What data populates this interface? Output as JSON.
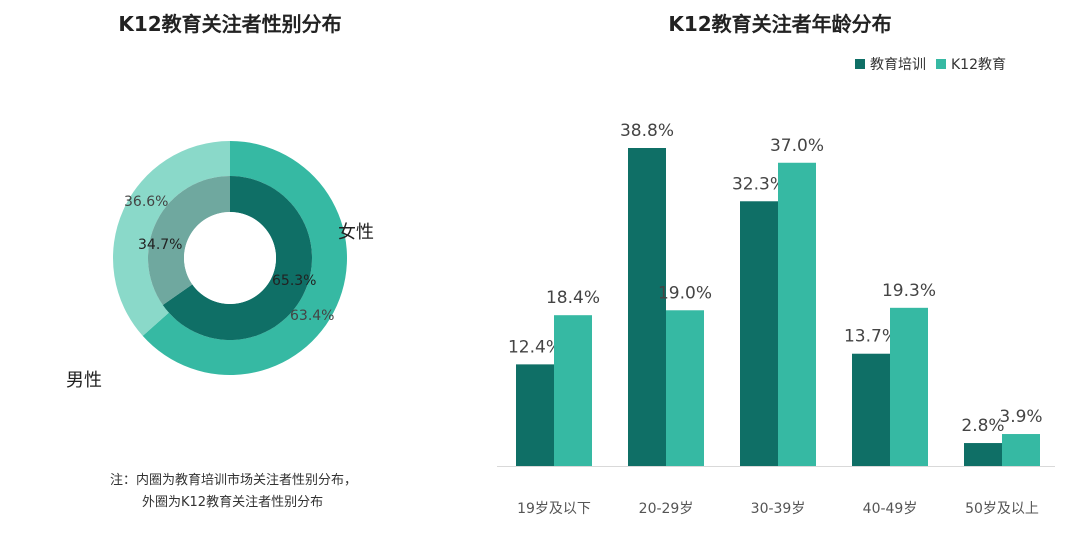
{
  "donut": {
    "title": "K12教育关注者性别分布",
    "note_line1": "注：内圈为教育培训市场关注者性别分布，",
    "note_line2": "外圈为K12教育关注者性别分布",
    "female_label": "女性",
    "male_label": "男性"
  },
  "bar": {
    "title": "K12教育关注者年龄分布"
  },
  "colors": {
    "dark": "#0f6f66",
    "light": "#36b9a3",
    "outer_male": "#8ad9c9",
    "inner_male": "#6fa89f"
  },
  "chart_data": [
    {
      "type": "pie",
      "title": "K12教育关注者性别分布",
      "series": [
        {
          "name": "外圈 K12教育",
          "labels": [
            "女性",
            "男性"
          ],
          "values": [
            63.4,
            36.6
          ],
          "value_labels": [
            "63.4%",
            "36.6%"
          ]
        },
        {
          "name": "内圈 教育培训",
          "labels": [
            "女性",
            "男性"
          ],
          "values": [
            65.3,
            34.7
          ],
          "value_labels": [
            "65.3%",
            "34.7%"
          ]
        }
      ]
    },
    {
      "type": "bar",
      "title": "K12教育关注者年龄分布",
      "categories": [
        "19岁及以下",
        "20-29岁",
        "30-39岁",
        "40-49岁",
        "50岁及以上"
      ],
      "series": [
        {
          "name": "教育培训",
          "values": [
            12.4,
            38.8,
            32.3,
            13.7,
            2.8
          ],
          "value_labels": [
            "12.4%",
            "38.8%",
            "32.3%",
            "13.7%",
            "2.8%"
          ]
        },
        {
          "name": "K12教育",
          "values": [
            18.4,
            19.0,
            37.0,
            19.3,
            3.9
          ],
          "value_labels": [
            "18.4%",
            "19.0%",
            "37.0%",
            "19.3%",
            "3.9%"
          ]
        }
      ],
      "ylim": [
        0,
        40
      ],
      "legend": "top-right"
    }
  ]
}
